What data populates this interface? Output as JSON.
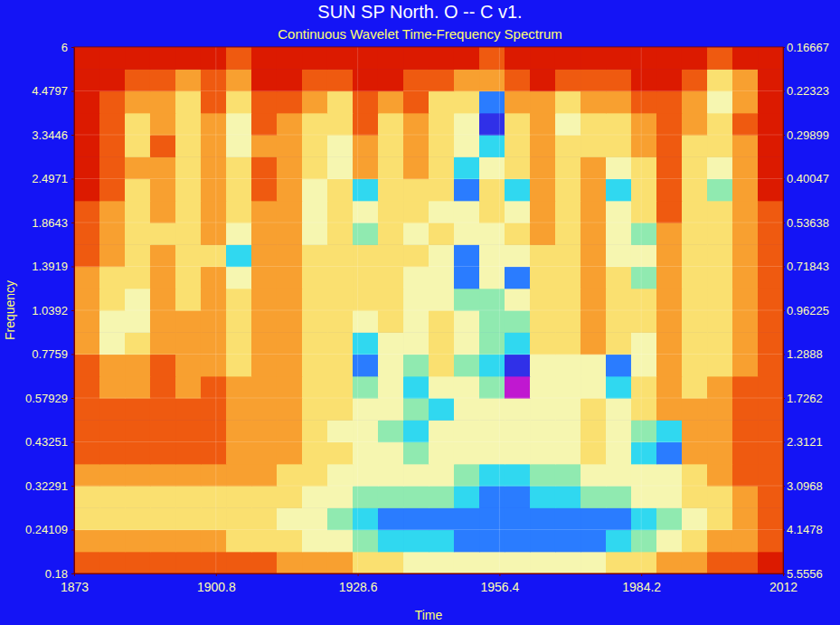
{
  "chart_data": {
    "type": "heatmap",
    "title": "SUN SP North. O -- C v1.",
    "subtitle": "Continuous Wavelet Time-Frequency Spectrum",
    "x_label": "Time",
    "y_label": "Frequency",
    "log": "y",
    "grid": true,
    "xlim": [
      1873,
      2012
    ],
    "xticks": [
      1873,
      1900.8,
      1928.6,
      1956.4,
      1984.2,
      2012
    ],
    "ylim": [
      0.18,
      6
    ],
    "yticks": [
      0.18,
      0.24109,
      0.32291,
      0.43251,
      0.57929,
      0.7759,
      1.0392,
      1.3919,
      1.8643,
      2.4971,
      3.3446,
      4.4797,
      6
    ],
    "y2lim": [
      5.5556,
      0.16667
    ],
    "y2ticks": [
      5.5556,
      4.1478,
      3.0968,
      2.3121,
      1.7262,
      1.2888,
      0.96225,
      0.71843,
      0.53638,
      0.40047,
      0.29899,
      0.22323,
      0.16667
    ],
    "x_edges": [
      1873,
      1877.96,
      1882.93,
      1887.89,
      1892.86,
      1897.82,
      1902.79,
      1907.75,
      1912.71,
      1917.68,
      1922.64,
      1927.61,
      1932.57,
      1937.54,
      1942.5,
      1947.46,
      1952.43,
      1957.39,
      1962.36,
      1967.32,
      1972.29,
      1977.25,
      1982.21,
      1987.18,
      1992.14,
      1997.11,
      2002.07,
      2007.04,
      2012
    ],
    "y_edges": [
      0.18,
      0.2083,
      0.24109,
      0.279,
      0.32291,
      0.3737,
      0.43251,
      0.5006,
      0.57929,
      0.6704,
      0.7759,
      0.898,
      1.0392,
      1.2027,
      1.3919,
      1.6109,
      1.8643,
      2.1576,
      2.4971,
      2.8899,
      3.3446,
      3.8708,
      4.4797,
      5.1844,
      6
    ],
    "zlim": [
      0,
      10
    ],
    "z": [
      [
        2,
        2,
        2,
        2,
        2,
        2,
        2,
        2,
        3,
        3,
        3,
        4,
        4,
        5,
        5,
        5,
        5,
        5,
        5,
        5,
        5,
        4,
        4,
        3,
        3,
        2,
        2,
        1
      ],
      [
        3,
        3,
        3,
        3,
        3,
        3,
        4,
        4,
        4,
        5,
        5,
        6,
        7,
        7,
        7,
        8,
        8,
        8,
        8,
        8,
        8,
        7,
        6,
        5,
        4,
        3,
        3,
        2
      ],
      [
        4,
        4,
        4,
        4,
        4,
        4,
        4,
        4,
        5,
        5,
        6,
        7,
        8,
        8,
        8,
        8,
        8,
        8,
        8,
        8,
        8,
        8,
        7,
        6,
        5,
        4,
        3,
        2
      ],
      [
        4,
        4,
        4,
        4,
        4,
        4,
        4,
        4,
        4,
        5,
        5,
        6,
        6,
        6,
        6,
        7,
        8,
        8,
        7,
        7,
        6,
        6,
        5,
        5,
        4,
        4,
        3,
        2
      ],
      [
        3,
        3,
        3,
        3,
        3,
        3,
        3,
        3,
        4,
        4,
        5,
        5,
        5,
        5,
        5,
        6,
        7,
        7,
        6,
        6,
        5,
        5,
        5,
        5,
        4,
        3,
        2,
        2
      ],
      [
        2,
        2,
        2,
        2,
        2,
        2,
        3,
        3,
        3,
        4,
        4,
        5,
        5,
        6,
        5,
        5,
        5,
        5,
        5,
        5,
        4,
        5,
        7,
        8,
        3,
        3,
        2,
        2
      ],
      [
        2,
        2,
        2,
        2,
        2,
        2,
        3,
        3,
        3,
        4,
        5,
        5,
        6,
        7,
        5,
        5,
        5,
        5,
        5,
        5,
        4,
        5,
        6,
        7,
        3,
        3,
        2,
        2
      ],
      [
        2,
        2,
        2,
        2,
        2,
        2,
        3,
        3,
        3,
        4,
        4,
        5,
        5,
        6,
        7,
        5,
        5,
        5,
        5,
        5,
        4,
        5,
        4,
        3,
        3,
        3,
        2,
        2
      ],
      [
        2,
        3,
        3,
        2,
        3,
        2,
        3,
        3,
        3,
        4,
        4,
        6,
        5,
        7,
        5,
        5,
        6,
        10,
        5,
        5,
        5,
        7,
        4,
        3,
        4,
        3,
        2,
        2
      ],
      [
        2,
        3,
        3,
        2,
        3,
        3,
        4,
        3,
        3,
        4,
        4,
        8,
        5,
        6,
        4,
        6,
        7,
        9,
        5,
        5,
        5,
        8,
        5,
        3,
        4,
        4,
        3,
        2
      ],
      [
        3,
        5,
        4,
        3,
        3,
        3,
        4,
        3,
        3,
        4,
        4,
        7,
        5,
        5,
        4,
        5,
        6,
        7,
        4,
        4,
        3,
        4,
        5,
        3,
        4,
        4,
        3,
        2
      ],
      [
        3,
        5,
        5,
        3,
        3,
        3,
        4,
        3,
        3,
        4,
        4,
        5,
        4,
        5,
        4,
        5,
        6,
        6,
        4,
        4,
        3,
        4,
        4,
        3,
        4,
        4,
        3,
        2
      ],
      [
        3,
        4,
        5,
        3,
        4,
        3,
        4,
        3,
        3,
        4,
        4,
        4,
        4,
        5,
        5,
        6,
        6,
        5,
        4,
        4,
        3,
        4,
        4,
        3,
        4,
        4,
        3,
        2
      ],
      [
        3,
        4,
        4,
        3,
        4,
        3,
        5,
        3,
        3,
        4,
        4,
        4,
        4,
        5,
        5,
        8,
        5,
        8,
        4,
        4,
        3,
        4,
        6,
        3,
        4,
        4,
        3,
        2
      ],
      [
        2,
        3,
        4,
        3,
        4,
        4,
        7,
        3,
        3,
        4,
        4,
        4,
        4,
        4,
        5,
        8,
        5,
        5,
        4,
        4,
        3,
        5,
        5,
        3,
        4,
        4,
        3,
        2
      ],
      [
        2,
        3,
        4,
        4,
        4,
        3,
        5,
        3,
        3,
        5,
        4,
        6,
        4,
        5,
        4,
        5,
        5,
        4,
        3,
        4,
        3,
        5,
        6,
        3,
        4,
        4,
        3,
        2
      ],
      [
        2,
        3,
        4,
        3,
        4,
        3,
        4,
        3,
        3,
        5,
        4,
        5,
        4,
        4,
        5,
        5,
        4,
        5,
        3,
        4,
        3,
        5,
        4,
        2,
        4,
        4,
        3,
        2
      ],
      [
        1,
        2,
        4,
        3,
        4,
        3,
        4,
        2,
        3,
        5,
        4,
        7,
        4,
        4,
        4,
        8,
        4,
        7,
        3,
        4,
        3,
        7,
        4,
        2,
        4,
        6,
        3,
        1
      ],
      [
        1,
        2,
        3,
        3,
        4,
        3,
        4,
        2,
        3,
        4,
        5,
        3,
        4,
        3,
        4,
        7,
        5,
        4,
        3,
        4,
        3,
        5,
        4,
        2,
        4,
        5,
        3,
        1
      ],
      [
        1,
        2,
        4,
        2,
        4,
        3,
        5,
        3,
        3,
        4,
        5,
        3,
        4,
        3,
        4,
        5,
        7,
        4,
        3,
        4,
        4,
        4,
        3,
        2,
        4,
        4,
        3,
        1
      ],
      [
        1,
        2,
        4,
        3,
        4,
        3,
        5,
        2,
        3,
        4,
        4,
        2,
        4,
        3,
        4,
        5,
        9,
        4,
        3,
        5,
        4,
        4,
        3,
        2,
        3,
        4,
        2,
        1
      ],
      [
        1,
        2,
        3,
        3,
        4,
        2,
        4,
        2,
        2,
        3,
        4,
        2,
        3,
        2,
        4,
        4,
        8,
        3,
        3,
        4,
        3,
        3,
        2,
        2,
        3,
        5,
        3,
        1
      ],
      [
        1,
        1,
        2,
        2,
        3,
        2,
        3,
        1,
        1,
        2,
        2,
        1,
        1,
        2,
        2,
        3,
        3,
        2,
        1,
        2,
        2,
        2,
        1,
        1,
        2,
        4,
        3,
        1
      ],
      [
        1,
        1,
        1,
        1,
        1,
        1,
        2,
        1,
        1,
        1,
        1,
        1,
        1,
        1,
        1,
        1,
        2,
        1,
        1,
        1,
        1,
        1,
        1,
        1,
        1,
        2,
        1,
        1
      ]
    ]
  }
}
